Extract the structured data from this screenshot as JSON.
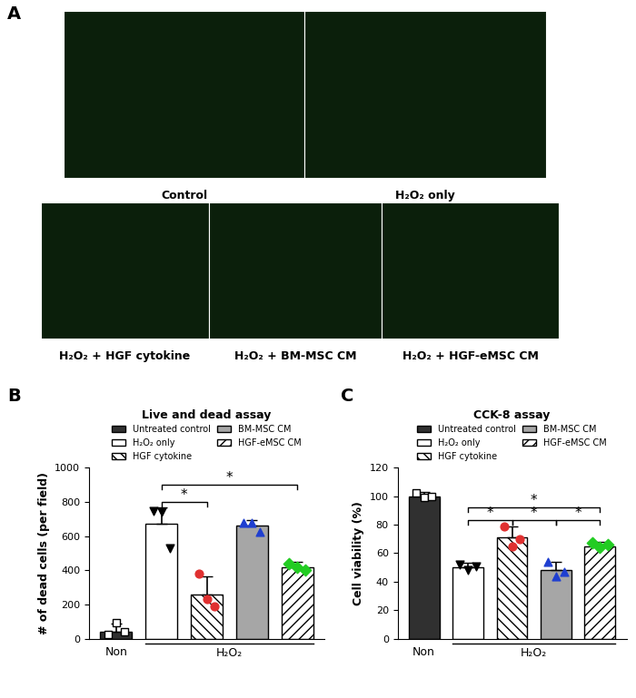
{
  "panel_labels": [
    "A",
    "B",
    "C"
  ],
  "images": {
    "rows": [
      [
        "Control",
        "H₂O₂ only"
      ],
      [
        "H₂O₂ + HGF cytokine",
        "H₂O₂ + BM-MSC CM",
        "H₂O₂ + HGF-eMSC CM"
      ]
    ]
  },
  "chart_data": [
    {
      "type": "bar",
      "title": "Live and dead assay",
      "y_label": "# of dead cells (per field)",
      "categories": [
        "Non",
        null,
        null,
        null,
        null
      ],
      "group_label": {
        "label": "H₂O₂",
        "from": 1,
        "to": 4
      },
      "ylim": [
        0,
        1000
      ],
      "yticks": [
        0,
        200,
        400,
        600,
        800,
        1000
      ],
      "legend": "lower center",
      "series": [
        {
          "name": "Untreated control",
          "color": "#303030",
          "marker": "square",
          "values": [
            40,
            null,
            null,
            null,
            null
          ],
          "errors": [
            50,
            null,
            null,
            null,
            null
          ],
          "points": [
            25,
            95,
            40
          ]
        },
        {
          "name": "H₂O₂ only",
          "color": "#ffffff",
          "marker": "triangle_down",
          "values": [
            null,
            670,
            null,
            null,
            null
          ],
          "errors": [
            null,
            100,
            null,
            null,
            null
          ],
          "points": [
            745,
            740,
            530
          ]
        },
        {
          "name": "HGF cytokine",
          "color": "#ffffff",
          "marker": "circle",
          "values": [
            null,
            null,
            260,
            null,
            null
          ],
          "errors": [
            null,
            null,
            105,
            null,
            null
          ],
          "points": [
            380,
            230,
            190
          ]
        },
        {
          "name": "BM-MSC CM",
          "color": "#a6a6a6",
          "marker": "triangle_up",
          "values": [
            null,
            null,
            null,
            660,
            null
          ],
          "errors": [
            null,
            null,
            null,
            35,
            null
          ],
          "points": [
            680,
            680,
            625
          ]
        },
        {
          "name": "HGF-eMSC CM",
          "color": "#ffffff",
          "marker": "diamond",
          "values": [
            null,
            null,
            null,
            null,
            420
          ],
          "errors": [
            null,
            null,
            null,
            null,
            30
          ],
          "points": [
            440,
            420,
            400
          ]
        }
      ],
      "significance": [
        {
          "from": 1,
          "to": 2,
          "y": 800,
          "label": "*"
        },
        {
          "from": 1,
          "to": 4,
          "y": 900,
          "label": "*"
        }
      ]
    },
    {
      "type": "bar",
      "title": "CCK-8 assay",
      "y_label": "Cell viability (%)",
      "categories": [
        "Non",
        null,
        null,
        null,
        null
      ],
      "group_label": {
        "label": "H₂O₂",
        "from": 1,
        "to": 4
      },
      "ylim": [
        0,
        120
      ],
      "yticks": [
        0,
        20,
        40,
        60,
        80,
        100,
        120
      ],
      "legend": "lower center",
      "series": [
        {
          "name": "Untreated control",
          "color": "#303030",
          "marker": "square",
          "values": [
            100,
            null,
            null,
            null,
            null
          ],
          "errors": [
            3,
            null,
            null,
            null,
            null
          ],
          "points": [
            102,
            99,
            100
          ]
        },
        {
          "name": "H₂O₂ only",
          "color": "#ffffff",
          "marker": "triangle_down",
          "values": [
            null,
            50,
            null,
            null,
            null
          ],
          "errors": [
            null,
            3,
            null,
            null,
            null
          ],
          "points": [
            52,
            48,
            51
          ]
        },
        {
          "name": "HGF cytokine",
          "color": "#ffffff",
          "marker": "circle",
          "values": [
            null,
            null,
            71,
            null,
            null
          ],
          "errors": [
            null,
            null,
            8,
            null,
            null
          ],
          "points": [
            79,
            65,
            70
          ]
        },
        {
          "name": "BM-MSC CM",
          "color": "#a6a6a6",
          "marker": "triangle_up",
          "values": [
            null,
            null,
            null,
            48,
            null
          ],
          "errors": [
            null,
            null,
            null,
            6,
            null
          ],
          "points": [
            54,
            44,
            47
          ]
        },
        {
          "name": "HGF-eMSC CM",
          "color": "#ffffff",
          "marker": "diamond",
          "values": [
            null,
            null,
            null,
            null,
            65
          ],
          "errors": [
            null,
            null,
            null,
            null,
            3
          ],
          "points": [
            67,
            64,
            66
          ]
        }
      ],
      "significance": [
        {
          "from": 1,
          "to": 2,
          "y": 83,
          "label": "*"
        },
        {
          "from": 2,
          "to": 3,
          "y": 83,
          "label": "*"
        },
        {
          "from": 3,
          "to": 4,
          "y": 83,
          "label": "*"
        },
        {
          "from": 1,
          "to": 4,
          "y": 92,
          "label": "*"
        }
      ]
    }
  ]
}
